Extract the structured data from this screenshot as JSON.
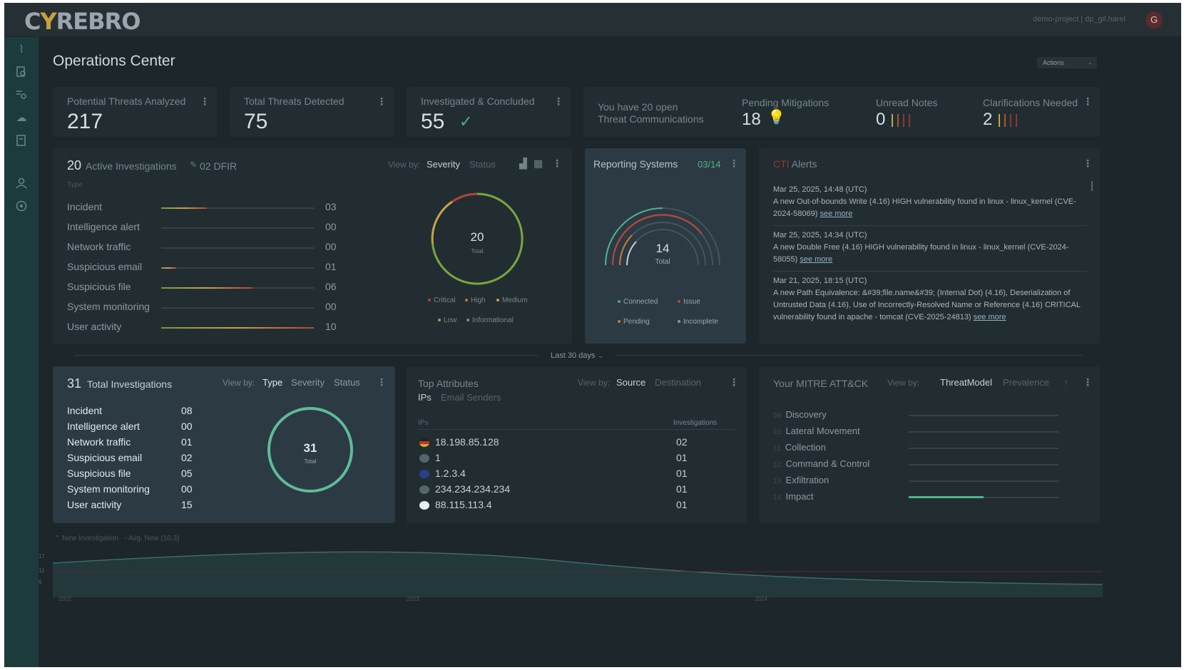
{
  "app": {
    "logo": "CYREBRO",
    "logo_part1": "C",
    "logo_y": "Y",
    "logo_part2": "REBRO",
    "project": "demo-project | dp_gil.harel",
    "user_initial": "G"
  },
  "page": {
    "title": "Operations Center",
    "actions_label": "Actions"
  },
  "sidebar": {
    "icons": [
      "activity-icon",
      "search-doc-icon",
      "list-search-icon",
      "cloud-icon",
      "document-search-icon",
      "user-icon",
      "support-icon"
    ]
  },
  "stats": [
    {
      "label": "Potential Threats Analyzed",
      "value": "217"
    },
    {
      "label": "Total Threats Detected",
      "value": "75"
    },
    {
      "label": "Investigated & Concluded",
      "value": "55"
    }
  ],
  "comms": {
    "line1": "You have 20 open",
    "line2": "Threat Communications",
    "pending_label": "Pending Mitigations",
    "pending_value": "18",
    "unread_label": "Unread Notes",
    "unread_value": "0",
    "clar_label": "Clarifications Needed",
    "clar_value": "2"
  },
  "active": {
    "count": "20",
    "title": "Active Investigations",
    "dfir": "02 DFIR",
    "viewby": "View by:",
    "opt1": "Severity",
    "opt2": "Status",
    "col": "Type",
    "rows": [
      {
        "label": "Incident",
        "value": "03",
        "fill": 0.3
      },
      {
        "label": "Intelligence alert",
        "value": "00",
        "fill": 0
      },
      {
        "label": "Network traffic",
        "value": "00",
        "fill": 0
      },
      {
        "label": "Suspicious email",
        "value": "01",
        "fill": 0.1
      },
      {
        "label": "Suspicious file",
        "value": "06",
        "fill": 0.6
      },
      {
        "label": "System monitoring",
        "value": "00",
        "fill": 0
      },
      {
        "label": "User activity",
        "value": "10",
        "fill": 1
      }
    ],
    "donut_value": "20",
    "donut_label": "Total",
    "legend": [
      "Critical",
      "High",
      "Medium",
      "Low",
      "Informational"
    ],
    "legend_colors": [
      "#b5433a",
      "#c8762f",
      "#c9a24a",
      "#8ea34a",
      "#7a8f95"
    ]
  },
  "reporting": {
    "title": "Reporting Systems",
    "ratio": "03/14",
    "value": "14",
    "label": "Total",
    "legend": [
      "Connected",
      "Issue",
      "Pending",
      "Incomplete"
    ],
    "legend_colors": [
      "#5aa46c",
      "#c0443a",
      "#c87a30",
      "#8c989d"
    ]
  },
  "alerts": {
    "prefix": "CTI",
    "title": "Alerts",
    "items": [
      {
        "date": "Mar 25, 2025, 14:48 (UTC)",
        "line1": "A new Out-of-bounds Write (4.16) HIGH vulnerability found in linux - linux_kernel (CVE-",
        "line2": "2024-58069)",
        "more": "see more"
      },
      {
        "date": "Mar 25, 2025, 14:34 (UTC)",
        "line1": "A new Double Free (4.16) HIGH vulnerability found in linux - linux_kernel (CVE-2024-",
        "line2": "58055)",
        "more": "see more"
      },
      {
        "date": "Mar 21, 2025, 18:15 (UTC)",
        "line1": "A new Path Equivalence: &#39;file.name&#39; (Internal Dot) (4.16), Deserialization of",
        "line2": "Untrusted Data (4.16), Use of Incorrectly-Resolved Name or Reference (4.16) CRITICAL",
        "line3": "vulnerability found in apache - tomcat (CVE-2025-24813)",
        "more": "see more"
      }
    ]
  },
  "period": {
    "label": "Last 30 days"
  },
  "total": {
    "count": "31",
    "title": "Total Investigations",
    "viewby": "View by:",
    "opt1": "Type",
    "opt2": "Severity",
    "opt3": "Status",
    "rows": [
      {
        "label": "Incident",
        "value": "08"
      },
      {
        "label": "Intelligence alert",
        "value": "00"
      },
      {
        "label": "Network traffic",
        "value": "01"
      },
      {
        "label": "Suspicious email",
        "value": "02"
      },
      {
        "label": "Suspicious file",
        "value": "05"
      },
      {
        "label": "System monitoring",
        "value": "00"
      },
      {
        "label": "User activity",
        "value": "15"
      }
    ],
    "donut_value": "31",
    "donut_label": "Total"
  },
  "attributes": {
    "title": "Top Attributes",
    "viewby": "View by:",
    "opt1": "Source",
    "opt2": "Destination",
    "tab1": "IPs",
    "tab2": "Email Senders",
    "col1": "IPs",
    "col2": "Investigations",
    "rows": [
      {
        "ip": "18.198.85.128",
        "value": "02",
        "flag": "flag-de-icon"
      },
      {
        "ip": "1",
        "value": "01",
        "flag": "flag-unknown-icon"
      },
      {
        "ip": "1.2.3.4",
        "value": "01",
        "flag": "flag-au-icon"
      },
      {
        "ip": "234.234.234.234",
        "value": "01",
        "flag": "flag-unknown-icon"
      },
      {
        "ip": "88.115.113.4",
        "value": "01",
        "flag": "flag-fi-icon"
      }
    ]
  },
  "mitre": {
    "title": "Your MITRE ATT&CK",
    "viewby": "View by:",
    "opt1": "ThreatModel",
    "opt2": "Prevalence",
    "rows": [
      {
        "num": "09.",
        "label": "Discovery",
        "fill": 0
      },
      {
        "num": "10.",
        "label": "Lateral Movement",
        "fill": 0
      },
      {
        "num": "11.",
        "label": "Collection",
        "fill": 0
      },
      {
        "num": "12.",
        "label": "Command & Control",
        "fill": 0
      },
      {
        "num": "13.",
        "label": "Exfiltration",
        "fill": 0
      },
      {
        "num": "14.",
        "label": "Impact",
        "fill": 0.5
      }
    ]
  },
  "timeline": {
    "legend1": "New Investigation",
    "legend2": "Avg. New (10.3)",
    "y_ticks": [
      "17",
      "11",
      "6"
    ],
    "x_ticks": [
      "2022",
      "2023",
      "2024"
    ]
  },
  "colors": {
    "accent": "#4fb38a",
    "critical": "#b5433a",
    "background": "#1d262a",
    "card": "#222d32"
  }
}
